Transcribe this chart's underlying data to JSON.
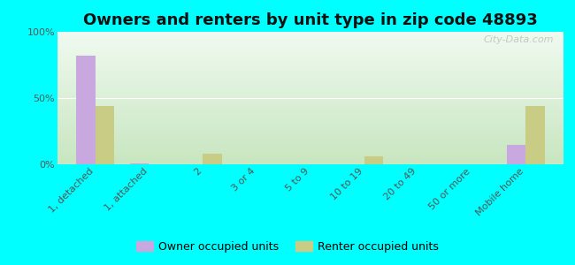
{
  "title": "Owners and renters by unit type in zip code 48893",
  "categories": [
    "1, detached",
    "1, attached",
    "2",
    "3 or 4",
    "5 to 9",
    "10 to 19",
    "20 to 49",
    "50 or more",
    "Mobile home"
  ],
  "owner_values": [
    82,
    1,
    0,
    0,
    0,
    0,
    0,
    0,
    15
  ],
  "renter_values": [
    44,
    0,
    8,
    0,
    0,
    6,
    0,
    0,
    44
  ],
  "owner_color": "#c9a8e0",
  "renter_color": "#c8cc84",
  "outer_bg": "#00ffff",
  "ylim": [
    0,
    100
  ],
  "yticks": [
    0,
    50,
    100
  ],
  "ytick_labels": [
    "0%",
    "50%",
    "100%"
  ],
  "legend_owner": "Owner occupied units",
  "legend_renter": "Renter occupied units",
  "watermark": "City-Data.com",
  "title_fontsize": 13,
  "tick_fontsize": 8
}
